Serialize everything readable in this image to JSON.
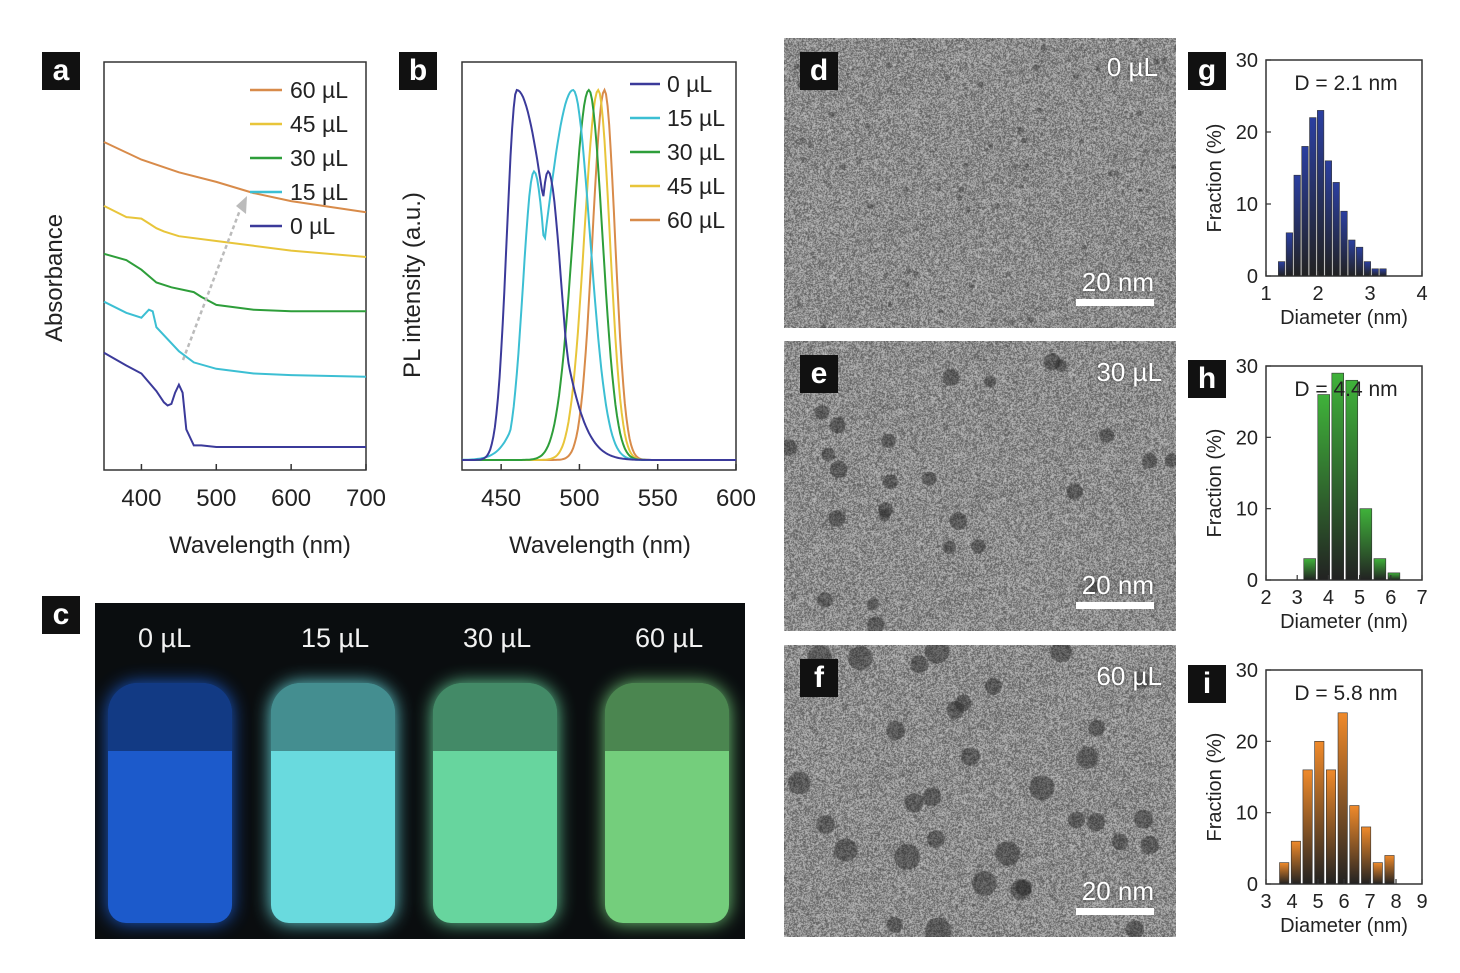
{
  "panel_letters": [
    "a",
    "b",
    "c",
    "d",
    "e",
    "f",
    "g",
    "h",
    "i"
  ],
  "colors": {
    "0": "#3b3a9a",
    "15": "#3cbfd3",
    "30": "#2e9e3a",
    "45": "#e8c53a",
    "60": "#d88b4a",
    "hist_g": "#2b3fa0",
    "hist_h": "#3fb23a",
    "hist_i": "#f08a2a"
  },
  "chart_data": [
    {
      "panel": "a",
      "type": "line",
      "xlabel": "Wavelength (nm)",
      "ylabel": "Absorbance",
      "xlim": [
        350,
        700
      ],
      "xticks": [
        "400",
        "500",
        "600",
        "700"
      ],
      "legend": [
        "60 µL",
        "45 µL",
        "30 µL",
        "15 µL",
        "0 µL"
      ],
      "series": [
        {
          "name": "0 µL",
          "color_key": "0",
          "x": [
            350,
            380,
            400,
            420,
            430,
            435,
            440,
            445,
            450,
            455,
            460,
            470,
            480,
            500,
            550,
            600,
            700
          ],
          "y": [
            0.58,
            0.5,
            0.45,
            0.34,
            0.27,
            0.25,
            0.26,
            0.33,
            0.38,
            0.33,
            0.1,
            0.0,
            0.0,
            -0.01,
            -0.01,
            -0.01,
            -0.01
          ]
        },
        {
          "name": "15 µL",
          "color_key": "15",
          "x": [
            350,
            380,
            400,
            410,
            415,
            420,
            450,
            470,
            500,
            550,
            600,
            700
          ],
          "y": [
            0.9,
            0.83,
            0.8,
            0.85,
            0.84,
            0.74,
            0.59,
            0.52,
            0.48,
            0.45,
            0.44,
            0.43
          ]
        },
        {
          "name": "30 µL",
          "color_key": "30",
          "x": [
            350,
            380,
            400,
            420,
            440,
            460,
            470,
            480,
            500,
            550,
            600,
            700
          ],
          "y": [
            1.2,
            1.16,
            1.1,
            1.02,
            0.99,
            0.97,
            0.96,
            0.93,
            0.88,
            0.85,
            0.84,
            0.84
          ]
        },
        {
          "name": "45 µL",
          "color_key": "45",
          "x": [
            350,
            380,
            400,
            410,
            420,
            430,
            450,
            500,
            550,
            600,
            700
          ],
          "y": [
            1.5,
            1.43,
            1.42,
            1.39,
            1.36,
            1.34,
            1.31,
            1.28,
            1.25,
            1.22,
            1.18
          ]
        },
        {
          "name": "60 µL",
          "color_key": "60",
          "x": [
            350,
            400,
            450,
            500,
            550,
            600,
            700
          ],
          "y": [
            1.9,
            1.79,
            1.71,
            1.65,
            1.58,
            1.53,
            1.46
          ]
        }
      ]
    },
    {
      "panel": "b",
      "type": "line",
      "xlabel": "Wavelength (nm)",
      "ylabel": "PL intensity (a.u.)",
      "xlim": [
        425,
        600
      ],
      "xticks": [
        "450",
        "500",
        "550",
        "600"
      ],
      "legend": [
        "0 µL",
        "15 µL",
        "30 µL",
        "45 µL",
        "60 µL"
      ],
      "series": [
        {
          "name": "0 µL",
          "color_key": "0",
          "peak": 460,
          "fwhm_left": 10,
          "fwhm_right": 30,
          "shoulder": 480
        },
        {
          "name": "15 µL",
          "color_key": "15",
          "peak": 496,
          "fwhm_left": 28,
          "fwhm_right": 16,
          "shoulder": 471
        },
        {
          "name": "30 µL",
          "color_key": "30",
          "peak": 506,
          "fwhm_left": 16,
          "fwhm_right": 13
        },
        {
          "name": "45 µL",
          "color_key": "45",
          "peak": 512,
          "fwhm_left": 14,
          "fwhm_right": 11
        },
        {
          "name": "60 µL",
          "color_key": "60",
          "peak": 516,
          "fwhm_left": 12,
          "fwhm_right": 10
        }
      ]
    },
    {
      "panel": "g",
      "type": "bar",
      "annotation": "D = 2.1 nm",
      "xlabel": "Diameter (nm)",
      "ylabel": "Fraction (%)",
      "xlim": [
        1,
        4
      ],
      "ylim": [
        0,
        30
      ],
      "xticks": [
        "1",
        "2",
        "3",
        "4"
      ],
      "yticks": [
        "0",
        "10",
        "20",
        "30"
      ],
      "bin_width": 0.125,
      "x": [
        1.3,
        1.45,
        1.6,
        1.75,
        1.9,
        2.05,
        2.2,
        2.35,
        2.5,
        2.65,
        2.8,
        2.95,
        3.1,
        3.25
      ],
      "values": [
        2,
        6,
        14,
        18,
        22,
        23,
        16,
        13,
        9,
        5,
        4,
        2,
        1,
        1
      ]
    },
    {
      "panel": "h",
      "type": "bar",
      "annotation": "D = 4.4 nm",
      "xlabel": "Diameter (nm)",
      "ylabel": "Fraction (%)",
      "xlim": [
        2,
        7
      ],
      "ylim": [
        0,
        30
      ],
      "xticks": [
        "2",
        "3",
        "4",
        "5",
        "6",
        "7"
      ],
      "yticks": [
        "0",
        "10",
        "20",
        "30"
      ],
      "bin_width": 0.38,
      "x": [
        3.4,
        3.85,
        4.3,
        4.75,
        5.2,
        5.65,
        6.1
      ],
      "values": [
        3,
        26,
        29,
        28,
        10,
        3,
        1
      ]
    },
    {
      "panel": "i",
      "type": "bar",
      "annotation": "D = 5.8 nm",
      "xlabel": "Diameter (nm)",
      "ylabel": "Fraction (%)",
      "xlim": [
        3,
        9
      ],
      "ylim": [
        0,
        30
      ],
      "xticks": [
        "3",
        "4",
        "5",
        "6",
        "7",
        "8",
        "9"
      ],
      "yticks": [
        "0",
        "10",
        "20",
        "30"
      ],
      "bin_width": 0.36,
      "x": [
        3.7,
        4.15,
        4.6,
        5.05,
        5.5,
        5.95,
        6.4,
        6.85,
        7.3,
        7.75,
        8.2
      ],
      "values": [
        3,
        6,
        16,
        20,
        16,
        24,
        11,
        8,
        3,
        4,
        0
      ]
    }
  ],
  "tem_panels": [
    {
      "letter": "d",
      "label": "0 µL",
      "scale": "20 nm",
      "particles": "small"
    },
    {
      "letter": "e",
      "label": "30 µL",
      "scale": "20 nm",
      "particles": "medium"
    },
    {
      "letter": "f",
      "label": "60 µL",
      "scale": "20 nm",
      "particles": "large"
    }
  ],
  "photo": {
    "vials": [
      {
        "label": "0 µL",
        "color": "#1d5fd6"
      },
      {
        "label": "15 µL",
        "color": "#6fe6ea"
      },
      {
        "label": "30 µL",
        "color": "#6de0a6"
      },
      {
        "label": "60 µL",
        "color": "#7ad982"
      }
    ]
  }
}
